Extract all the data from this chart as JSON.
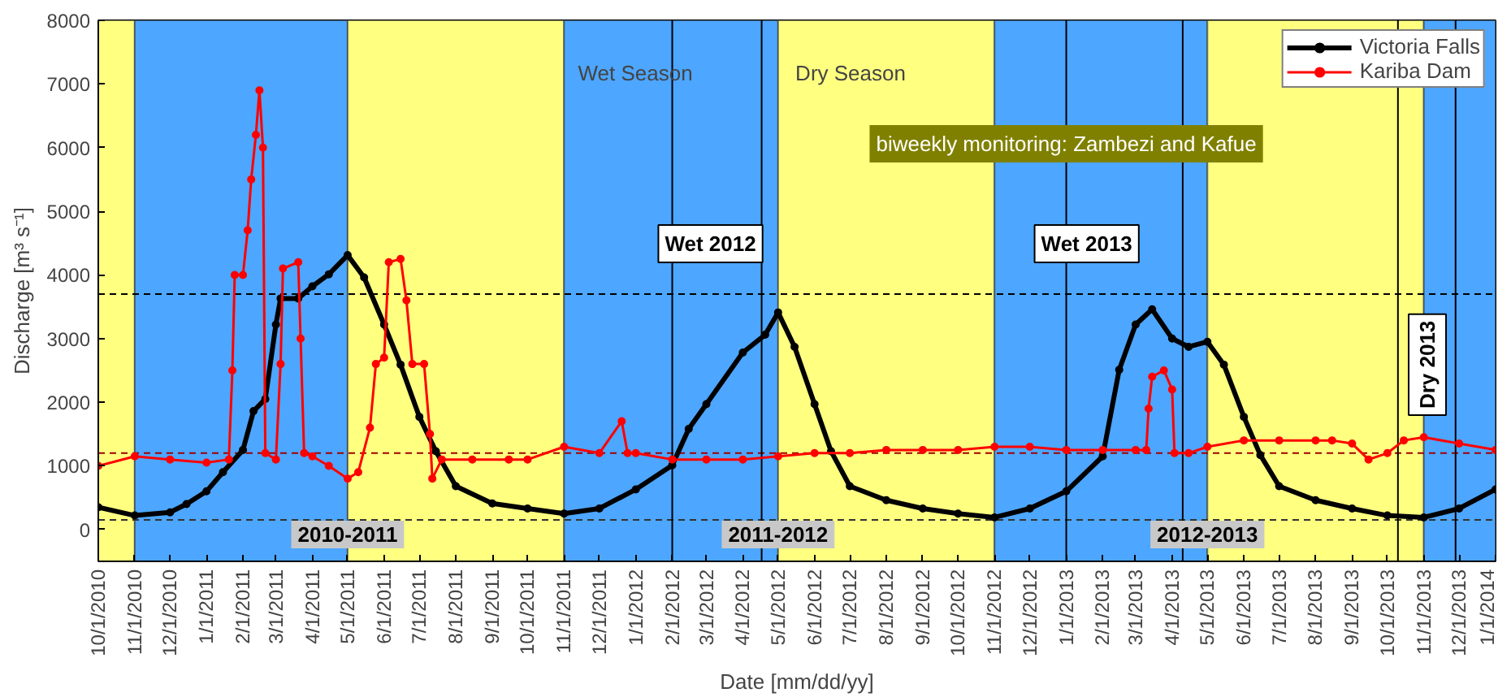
{
  "chart_data": {
    "type": "line",
    "xlabel": "Date [mm/dd/yy]",
    "ylabel": "Discharge [m³ s⁻¹]",
    "xlim": [
      "2010-10-01",
      "2014-01-01"
    ],
    "ylim": [
      -500,
      8000
    ],
    "yticks": [
      0,
      1000,
      2000,
      3000,
      4000,
      5000,
      6000,
      7000,
      8000
    ],
    "xticks": [
      {
        "value": "2010-10-01",
        "label": "10/1/2010"
      },
      {
        "value": "2010-11-01",
        "label": "11/1/2010"
      },
      {
        "value": "2010-12-01",
        "label": "12/1/2010"
      },
      {
        "value": "2011-01-01",
        "label": "1/1/2011"
      },
      {
        "value": "2011-02-01",
        "label": "2/1/2011"
      },
      {
        "value": "2011-03-01",
        "label": "3/1/2011"
      },
      {
        "value": "2011-04-01",
        "label": "4/1/2011"
      },
      {
        "value": "2011-05-01",
        "label": "5/1/2011"
      },
      {
        "value": "2011-06-01",
        "label": "6/1/2011"
      },
      {
        "value": "2011-07-01",
        "label": "7/1/2011"
      },
      {
        "value": "2011-08-01",
        "label": "8/1/2011"
      },
      {
        "value": "2011-09-01",
        "label": "9/1/2011"
      },
      {
        "value": "2011-10-01",
        "label": "10/1/2011"
      },
      {
        "value": "2011-11-01",
        "label": "11/1/2011"
      },
      {
        "value": "2011-12-01",
        "label": "12/1/2011"
      },
      {
        "value": "2012-01-01",
        "label": "1/1/2012"
      },
      {
        "value": "2012-02-01",
        "label": "2/1/2012"
      },
      {
        "value": "2012-03-01",
        "label": "3/1/2012"
      },
      {
        "value": "2012-04-01",
        "label": "4/1/2012"
      },
      {
        "value": "2012-05-01",
        "label": "5/1/2012"
      },
      {
        "value": "2012-06-01",
        "label": "6/1/2012"
      },
      {
        "value": "2012-07-01",
        "label": "7/1/2012"
      },
      {
        "value": "2012-08-01",
        "label": "8/1/2012"
      },
      {
        "value": "2012-09-01",
        "label": "9/1/2012"
      },
      {
        "value": "2012-10-01",
        "label": "10/1/2012"
      },
      {
        "value": "2012-11-01",
        "label": "11/1/2012"
      },
      {
        "value": "2012-12-01",
        "label": "12/1/2012"
      },
      {
        "value": "2013-01-01",
        "label": "1/1/2013"
      },
      {
        "value": "2013-02-01",
        "label": "2/1/2013"
      },
      {
        "value": "2013-03-01",
        "label": "3/1/2013"
      },
      {
        "value": "2013-04-01",
        "label": "4/1/2013"
      },
      {
        "value": "2013-05-01",
        "label": "5/1/2013"
      },
      {
        "value": "2013-06-01",
        "label": "6/1/2013"
      },
      {
        "value": "2013-07-01",
        "label": "7/1/2013"
      },
      {
        "value": "2013-08-01",
        "label": "8/1/2013"
      },
      {
        "value": "2013-09-01",
        "label": "9/1/2013"
      },
      {
        "value": "2013-10-01",
        "label": "10/1/2013"
      },
      {
        "value": "2013-11-01",
        "label": "11/1/2013"
      },
      {
        "value": "2013-12-01",
        "label": "12/1/2013"
      },
      {
        "value": "2014-01-01",
        "label": "1/1/2014"
      }
    ],
    "grid": false,
    "legend": "top right",
    "marker": "circle",
    "line_style": "solid",
    "series": [
      {
        "name": "Victoria Falls",
        "color": "#000000",
        "x": [
          "2010-10-01",
          "2010-11-01",
          "2010-12-01",
          "2010-12-15",
          "2011-01-01",
          "2011-01-15",
          "2011-02-01",
          "2011-02-10",
          "2011-02-20",
          "2011-03-01",
          "2011-03-05",
          "2011-03-20",
          "2011-04-01",
          "2011-04-15",
          "2011-05-01",
          "2011-05-15",
          "2011-06-01",
          "2011-06-15",
          "2011-07-01",
          "2011-07-15",
          "2011-08-01",
          "2011-09-01",
          "2011-10-01",
          "2011-11-01",
          "2011-12-01",
          "2012-01-01",
          "2012-02-01",
          "2012-02-15",
          "2012-03-01",
          "2012-04-01",
          "2012-04-20",
          "2012-05-01",
          "2012-05-15",
          "2012-06-01",
          "2012-06-15",
          "2012-07-01",
          "2012-08-01",
          "2012-09-01",
          "2012-10-01",
          "2012-11-01",
          "2012-12-01",
          "2013-01-01",
          "2013-02-01",
          "2013-02-15",
          "2013-03-01",
          "2013-03-15",
          "2013-04-01",
          "2013-04-15",
          "2013-05-01",
          "2013-05-15",
          "2013-06-01",
          "2013-06-15",
          "2013-07-01",
          "2013-08-01",
          "2013-09-01",
          "2013-10-01",
          "2013-11-01",
          "2013-12-01",
          "2014-01-01"
        ],
        "values": [
          350,
          220,
          270,
          400,
          600,
          900,
          1250,
          1860,
          2050,
          3220,
          3630,
          3630,
          3820,
          4010,
          4310,
          3960,
          3220,
          2590,
          1770,
          1230,
          680,
          410,
          330,
          250,
          330,
          630,
          1010,
          1580,
          1970,
          2780,
          3060,
          3410,
          2870,
          1970,
          1230,
          680,
          460,
          330,
          250,
          190,
          330,
          600,
          1150,
          2510,
          3220,
          3460,
          3000,
          2870,
          2950,
          2590,
          1770,
          1170,
          680,
          460,
          330,
          220,
          190,
          330,
          630
        ]
      },
      {
        "name": "Kariba Dam",
        "color": "#ff0000",
        "x": [
          "2010-10-01",
          "2010-11-01",
          "2010-12-01",
          "2011-01-01",
          "2011-01-20",
          "2011-01-23",
          "2011-01-25",
          "2011-02-01",
          "2011-02-05",
          "2011-02-08",
          "2011-02-12",
          "2011-02-15",
          "2011-02-18",
          "2011-02-20",
          "2011-03-01",
          "2011-03-05",
          "2011-03-07",
          "2011-03-20",
          "2011-03-22",
          "2011-03-25",
          "2011-04-01",
          "2011-04-15",
          "2011-05-01",
          "2011-05-10",
          "2011-05-20",
          "2011-05-25",
          "2011-06-01",
          "2011-06-05",
          "2011-06-15",
          "2011-06-20",
          "2011-06-25",
          "2011-07-05",
          "2011-07-10",
          "2011-07-12",
          "2011-07-20",
          "2011-08-15",
          "2011-09-15",
          "2011-10-01",
          "2011-11-01",
          "2011-12-01",
          "2011-12-20",
          "2011-12-25",
          "2012-01-01",
          "2012-02-01",
          "2012-03-01",
          "2012-04-01",
          "2012-05-01",
          "2012-06-01",
          "2012-07-01",
          "2012-08-01",
          "2012-09-01",
          "2012-10-01",
          "2012-11-01",
          "2012-12-01",
          "2013-01-01",
          "2013-02-01",
          "2013-03-01",
          "2013-03-10",
          "2013-03-12",
          "2013-03-15",
          "2013-03-25",
          "2013-04-01",
          "2013-04-03",
          "2013-04-15",
          "2013-05-01",
          "2013-06-01",
          "2013-07-01",
          "2013-08-01",
          "2013-08-15",
          "2013-09-01",
          "2013-09-15",
          "2013-10-01",
          "2013-10-15",
          "2013-11-01",
          "2013-12-01",
          "2014-01-01"
        ],
        "values": [
          1000,
          1150,
          1100,
          1050,
          1100,
          2500,
          4000,
          4000,
          4700,
          5500,
          6200,
          6900,
          6000,
          1200,
          1100,
          2600,
          4100,
          4200,
          3000,
          1200,
          1150,
          1000,
          800,
          900,
          1600,
          2600,
          2700,
          4200,
          4250,
          3600,
          2600,
          2600,
          1500,
          800,
          1100,
          1100,
          1100,
          1100,
          1300,
          1200,
          1700,
          1200,
          1200,
          1100,
          1100,
          1100,
          1150,
          1200,
          1200,
          1250,
          1250,
          1250,
          1300,
          1300,
          1250,
          1250,
          1250,
          1250,
          1900,
          2400,
          2500,
          2200,
          1200,
          1200,
          1300,
          1400,
          1400,
          1400,
          1400,
          1350,
          1100,
          1200,
          1400,
          1450,
          1350,
          1250
        ]
      }
    ],
    "bands": [
      {
        "axis": "x",
        "from": "2010-10-01",
        "to": "2010-11-01",
        "label": null,
        "color": "#ffff80"
      },
      {
        "axis": "x",
        "from": "2010-11-01",
        "to": "2011-05-01",
        "label": null,
        "color": "#4da6ff"
      },
      {
        "axis": "x",
        "from": "2011-05-01",
        "to": "2011-11-01",
        "label": null,
        "color": "#ffff80"
      },
      {
        "axis": "x",
        "from": "2011-11-01",
        "to": "2012-05-01",
        "label": "Wet Season",
        "color": "#4da6ff"
      },
      {
        "axis": "x",
        "from": "2012-05-01",
        "to": "2012-11-01",
        "label": "Dry Season",
        "color": "#ffff80"
      },
      {
        "axis": "x",
        "from": "2012-11-01",
        "to": "2013-05-01",
        "label": null,
        "color": "#4da6ff"
      },
      {
        "axis": "x",
        "from": "2013-05-01",
        "to": "2013-11-01",
        "label": null,
        "color": "#ffff80"
      },
      {
        "axis": "x",
        "from": "2013-11-01",
        "to": "2014-01-01",
        "label": null,
        "color": "#4da6ff"
      }
    ],
    "ref_lines": [
      {
        "axis": "y",
        "value": 3700,
        "label": null,
        "color": "#000000",
        "line_style": "dashed"
      },
      {
        "axis": "y",
        "value": 1200,
        "label": null,
        "color": "#a00000",
        "line_style": "dashed"
      },
      {
        "axis": "y",
        "value": 150,
        "label": null,
        "color": "#333333",
        "line_style": "dashed"
      },
      {
        "axis": "x",
        "value": "2012-02-01",
        "label": null,
        "color": "#000000",
        "line_style": "solid"
      },
      {
        "axis": "x",
        "value": "2012-04-17",
        "label": null,
        "color": "#000000",
        "line_style": "solid"
      },
      {
        "axis": "x",
        "value": "2013-01-01",
        "label": null,
        "color": "#000000",
        "line_style": "solid"
      },
      {
        "axis": "x",
        "value": "2013-04-10",
        "label": null,
        "color": "#000000",
        "line_style": "solid"
      },
      {
        "axis": "x",
        "value": "2013-10-10",
        "label": null,
        "color": "#000000",
        "line_style": "solid"
      },
      {
        "axis": "x",
        "value": "2013-11-28",
        "label": null,
        "color": "#000000",
        "line_style": "solid"
      }
    ],
    "annotations": [
      {
        "text": "biweekly monitoring: Zambezi and Kafue",
        "x": "2013-01-01",
        "y": 6060
      },
      "Wet 2012",
      "Wet 2013",
      {
        "text": "Dry 2013",
        "x": "2013-11-04",
        "y": 2590
      },
      {
        "text": "2010-2011",
        "x": "2011-05-01",
        "y": -80
      },
      {
        "text": "2011-2012",
        "x": "2012-05-01",
        "y": -80
      },
      {
        "text": "2012-2013",
        "x": "2013-05-01",
        "y": -80
      }
    ]
  }
}
